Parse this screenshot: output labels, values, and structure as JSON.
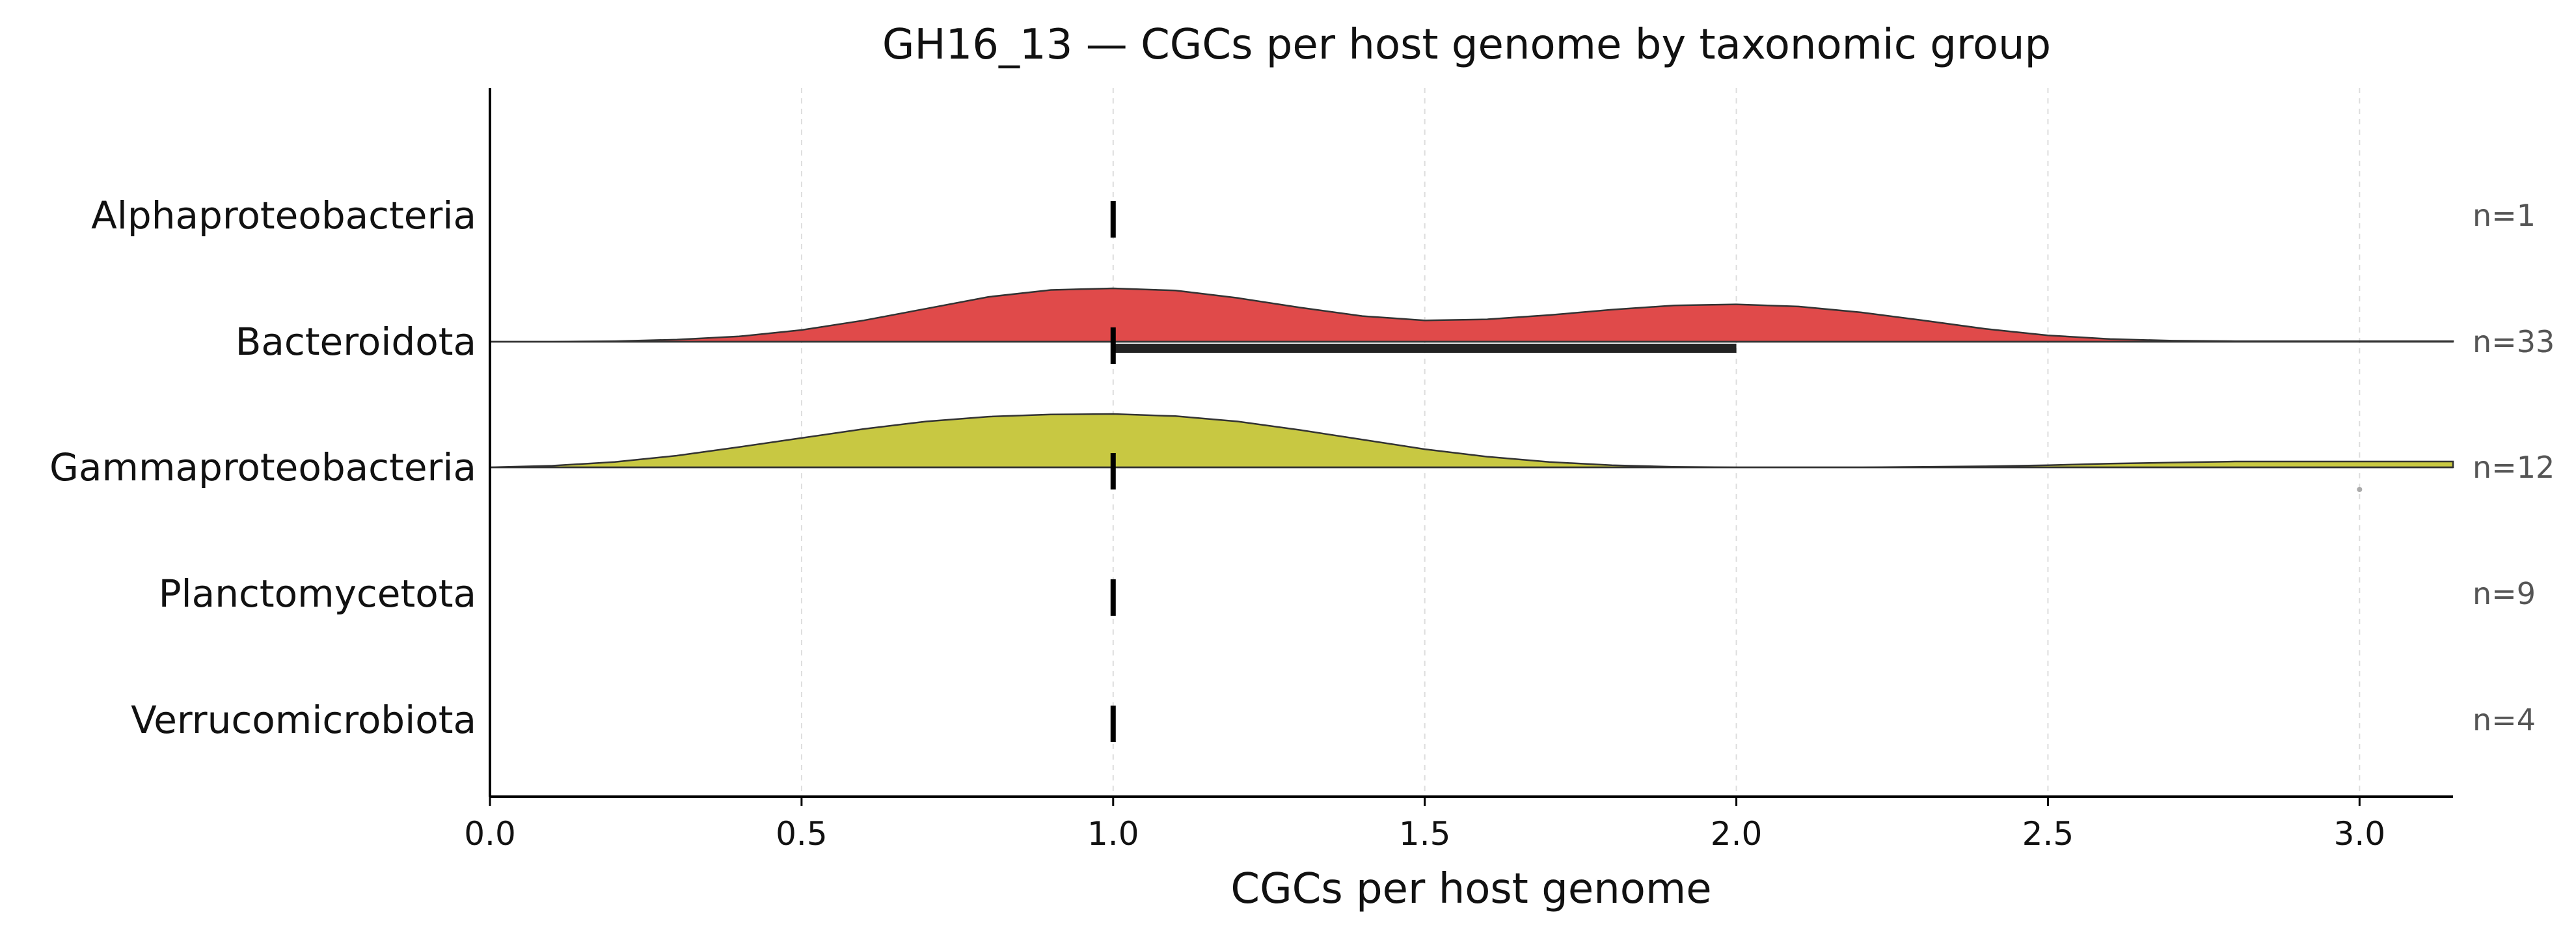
{
  "chart_data": {
    "type": "ridgeline",
    "title": "GH16_13 — CGCs per host genome by taxonomic group",
    "xlabel": "CGCs per host genome",
    "xlim": [
      0,
      3.15
    ],
    "xticks": [
      "0.0",
      "0.5",
      "1.0",
      "1.5",
      "2.0",
      "2.5",
      "3.0"
    ],
    "grid": "x-dashed",
    "groups": [
      {
        "name": "Alphaproteobacteria",
        "n_label": "n=1",
        "color": null,
        "median": 1.0,
        "iqr": [
          1.0,
          1.0
        ],
        "outliers": [],
        "density": null
      },
      {
        "name": "Bacteroidota",
        "n_label": "n=33",
        "color": "#e04a4a",
        "median": 1.0,
        "iqr": [
          1.0,
          2.0
        ],
        "outliers": [],
        "density": {
          "x": [
            0.0,
            0.1,
            0.2,
            0.3,
            0.4,
            0.5,
            0.6,
            0.7,
            0.8,
            0.9,
            1.0,
            1.1,
            1.2,
            1.3,
            1.4,
            1.5,
            1.6,
            1.7,
            1.8,
            1.9,
            2.0,
            2.1,
            2.2,
            2.3,
            2.4,
            2.5,
            2.6,
            2.7,
            2.8,
            2.9,
            3.0,
            3.1,
            3.15
          ],
          "y": [
            0.0,
            0.0,
            0.01,
            0.04,
            0.1,
            0.22,
            0.4,
            0.62,
            0.84,
            0.97,
            1.0,
            0.96,
            0.82,
            0.64,
            0.48,
            0.4,
            0.42,
            0.5,
            0.6,
            0.68,
            0.7,
            0.66,
            0.55,
            0.4,
            0.24,
            0.12,
            0.05,
            0.02,
            0.01,
            0.01,
            0.01,
            0.01,
            0.01
          ]
        }
      },
      {
        "name": "Gammaproteobacteria",
        "n_label": "n=12",
        "color": "#c8c842",
        "median": 1.0,
        "iqr": [
          1.0,
          1.0
        ],
        "outliers": [
          3.0
        ],
        "density": {
          "x": [
            0.0,
            0.1,
            0.2,
            0.3,
            0.4,
            0.5,
            0.6,
            0.7,
            0.8,
            0.9,
            1.0,
            1.1,
            1.2,
            1.3,
            1.4,
            1.5,
            1.6,
            1.7,
            1.8,
            1.9,
            2.0,
            2.1,
            2.2,
            2.3,
            2.4,
            2.5,
            2.6,
            2.7,
            2.8,
            2.9,
            3.0,
            3.1,
            3.15
          ],
          "y": [
            0.0,
            0.03,
            0.1,
            0.22,
            0.38,
            0.55,
            0.72,
            0.86,
            0.95,
            0.99,
            1.0,
            0.96,
            0.86,
            0.7,
            0.52,
            0.34,
            0.2,
            0.1,
            0.04,
            0.01,
            0.0,
            0.0,
            0.0,
            0.01,
            0.02,
            0.04,
            0.07,
            0.09,
            0.11,
            0.11,
            0.11,
            0.11,
            0.11
          ]
        }
      },
      {
        "name": "Planctomycetota",
        "n_label": "n=9",
        "color": null,
        "median": 1.0,
        "iqr": [
          1.0,
          1.0
        ],
        "outliers": [],
        "density": null
      },
      {
        "name": "Verrucomicrobiota",
        "n_label": "n=4",
        "color": null,
        "median": 1.0,
        "iqr": [
          1.0,
          1.0
        ],
        "outliers": [],
        "density": null
      }
    ]
  }
}
